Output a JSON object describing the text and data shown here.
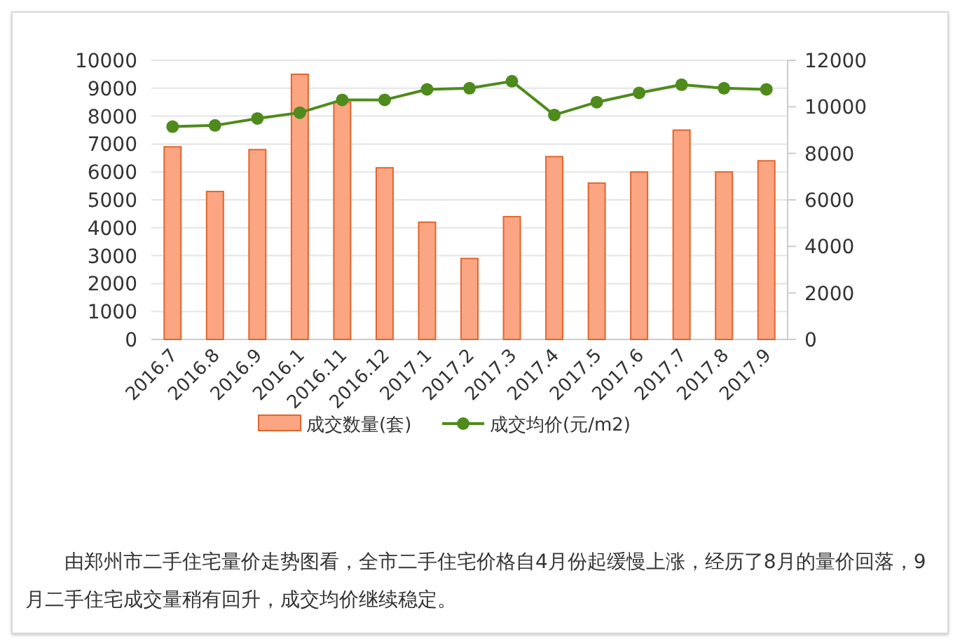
{
  "chart_data": {
    "type": "bar",
    "categories": [
      "2016.7",
      "2016.8",
      "2016.9",
      "2016.1",
      "2016.11",
      "2016.12",
      "2017.1",
      "2017.2",
      "2017.3",
      "2017.4",
      "2017.5",
      "2017.6",
      "2017.7",
      "2017.8",
      "2017.9"
    ],
    "series": [
      {
        "name": "成交数量(套)",
        "color": "#fca582",
        "values": [
          6900,
          5300,
          6800,
          9500,
          8500,
          6150,
          4200,
          2900,
          4400,
          6550,
          5600,
          6000,
          7500,
          6000,
          6400
        ]
      },
      {
        "name": "成交均价(元/m2)",
        "type": "line",
        "axis": "y2",
        "color": "#4f8a1c",
        "marker": "circle",
        "line_style": "solid",
        "values": [
          9150,
          9200,
          9500,
          9750,
          10300,
          10300,
          10750,
          10800,
          11100,
          9650,
          10200,
          10600,
          10950,
          10800,
          10750
        ]
      }
    ],
    "ylim": [
      0,
      10000
    ],
    "yticks": [
      0,
      1000,
      2000,
      3000,
      4000,
      5000,
      6000,
      7000,
      8000,
      9000,
      10000
    ],
    "y2lim": [
      0,
      12000
    ],
    "y2ticks": [
      0,
      2000,
      4000,
      6000,
      8000,
      10000,
      12000
    ],
    "grid": "y",
    "legend": "bottom",
    "annotations": [
      "由郑州市二手住宅量价走势图看，全市二手住宅价格自4月份起缓慢上涨，经历了8月的量价回落，9月二手住宅成交量稍有回升，成交均价继续稳定。"
    ]
  }
}
